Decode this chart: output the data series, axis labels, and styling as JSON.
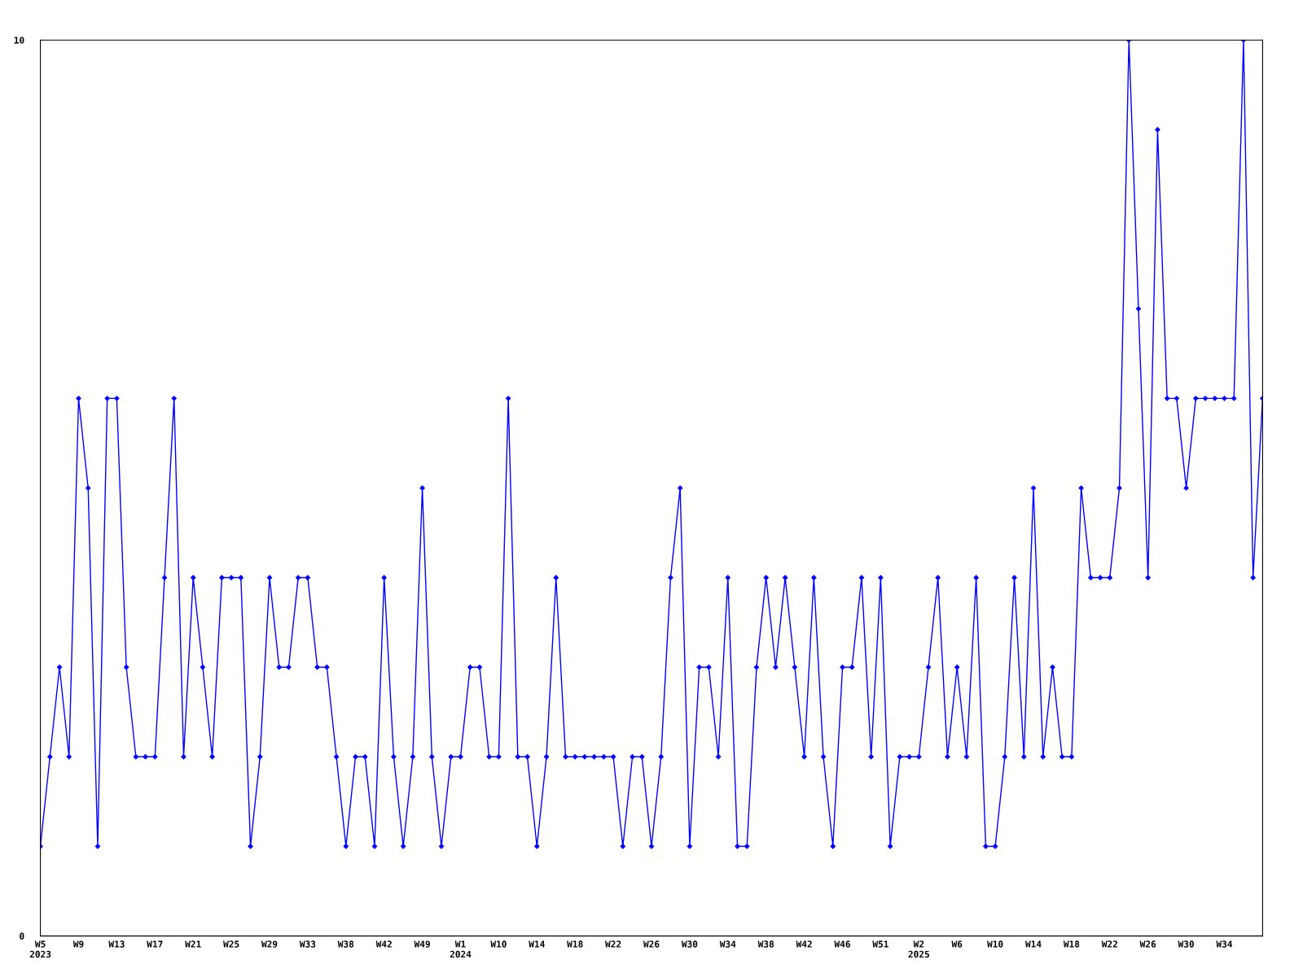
{
  "chart_data": {
    "type": "line",
    "categories": [
      "W5\n2023",
      null,
      null,
      null,
      "W9",
      null,
      null,
      null,
      "W13",
      null,
      null,
      null,
      "W17",
      null,
      null,
      null,
      "W21",
      null,
      null,
      null,
      "W25",
      null,
      null,
      null,
      "W29",
      null,
      null,
      null,
      "W33",
      null,
      null,
      null,
      "W38",
      null,
      null,
      null,
      "W42",
      null,
      null,
      null,
      "W49",
      null,
      null,
      null,
      "W1\n2024",
      null,
      null,
      null,
      "W10",
      null,
      null,
      null,
      "W14",
      null,
      null,
      null,
      "W18",
      null,
      null,
      null,
      "W22",
      null,
      null,
      null,
      "W26",
      null,
      null,
      null,
      "W30",
      null,
      null,
      null,
      "W34",
      null,
      null,
      null,
      "W38",
      null,
      null,
      null,
      "W42",
      null,
      null,
      null,
      "W46",
      null,
      null,
      null,
      "W51",
      null,
      null,
      null,
      "W2\n2025",
      null,
      null,
      null,
      "W6",
      null,
      null,
      null,
      "W10",
      null,
      null,
      null,
      "W14",
      null,
      null,
      null,
      "W18",
      null,
      null,
      null,
      "W22",
      null,
      null,
      null,
      "W26",
      null,
      null,
      null,
      "W30",
      null,
      null,
      null,
      "W34",
      null,
      null,
      null,
      null
    ],
    "series": [
      {
        "color": "#0000ff",
        "values": [
          1,
          2,
          3,
          2,
          6,
          5,
          1,
          6,
          6,
          3,
          2,
          2,
          2,
          4,
          6,
          2,
          4,
          3,
          2,
          4,
          4,
          4,
          1,
          2,
          4,
          3,
          3,
          4,
          4,
          3,
          3,
          2,
          1,
          2,
          2,
          1,
          4,
          2,
          1,
          2,
          5,
          2,
          1,
          2,
          2,
          3,
          3,
          2,
          2,
          6,
          2,
          2,
          1,
          2,
          4,
          2,
          2,
          2,
          2,
          2,
          2,
          1,
          2,
          2,
          1,
          2,
          4,
          5,
          1,
          3,
          3,
          2,
          4,
          1,
          1,
          3,
          4,
          3,
          4,
          3,
          2,
          4,
          2,
          1,
          3,
          3,
          4,
          2,
          4,
          1,
          2,
          2,
          2,
          3,
          4,
          2,
          3,
          2,
          4,
          1,
          1,
          2,
          4,
          2,
          5,
          2,
          3,
          2,
          2,
          5,
          4,
          4,
          4,
          5,
          10,
          7,
          4,
          9,
          6,
          6,
          5,
          6,
          6,
          6,
          6,
          6,
          10,
          4,
          6
        ]
      }
    ],
    "ylim": [
      0,
      10
    ],
    "yticks": [
      0,
      10
    ],
    "grid": false,
    "legend": false,
    "marker": "diamond",
    "line_style": "solid"
  }
}
